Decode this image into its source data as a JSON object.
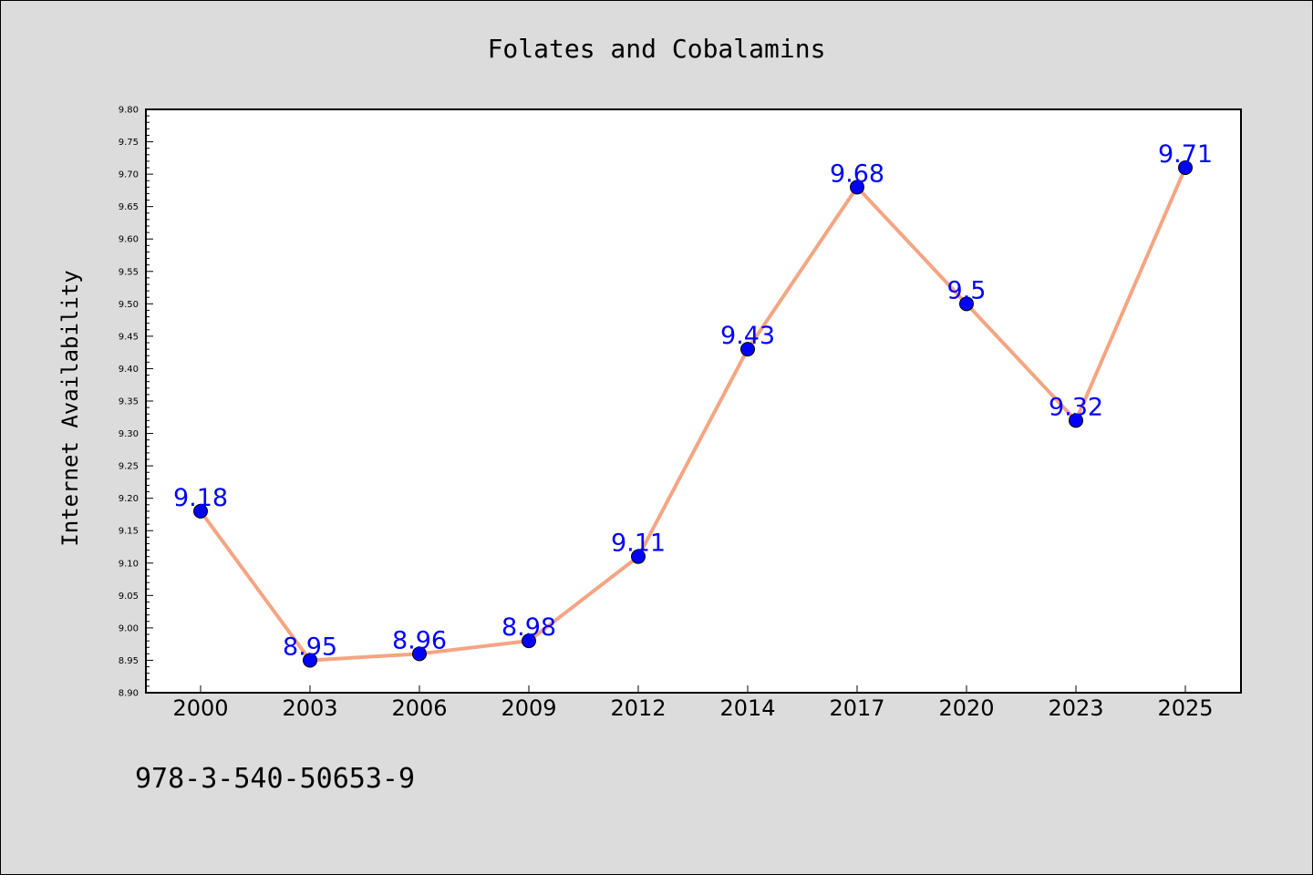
{
  "chart_data": {
    "type": "line",
    "title": "Folates and Cobalamins",
    "xlabel": "",
    "ylabel": "Internet Availability",
    "categories": [
      "2000",
      "2003",
      "2006",
      "2009",
      "2012",
      "2014",
      "2017",
      "2020",
      "2023",
      "2025"
    ],
    "series": [
      {
        "values": [
          9.18,
          8.95,
          8.96,
          8.98,
          9.11,
          9.43,
          9.68,
          9.5,
          9.32,
          9.71
        ],
        "labels": [
          "9.18",
          "8.95",
          "8.96",
          "8.98",
          "9.11",
          "9.43",
          "9.68",
          "9.5",
          "9.32",
          "9.71"
        ],
        "line_color": "#f4a582",
        "marker_color": "#0000ff"
      }
    ],
    "ylim": [
      8.9,
      9.8
    ],
    "yticks": [
      "8.90",
      "8.95",
      "9.00",
      "9.05",
      "9.10",
      "9.15",
      "9.20",
      "9.25",
      "9.30",
      "9.35",
      "9.40",
      "9.45",
      "9.50",
      "9.55",
      "9.60",
      "9.65",
      "9.70",
      "9.75",
      "9.80"
    ],
    "grid": false,
    "legend": "none"
  },
  "footer_text": "978-3-540-50653-9"
}
